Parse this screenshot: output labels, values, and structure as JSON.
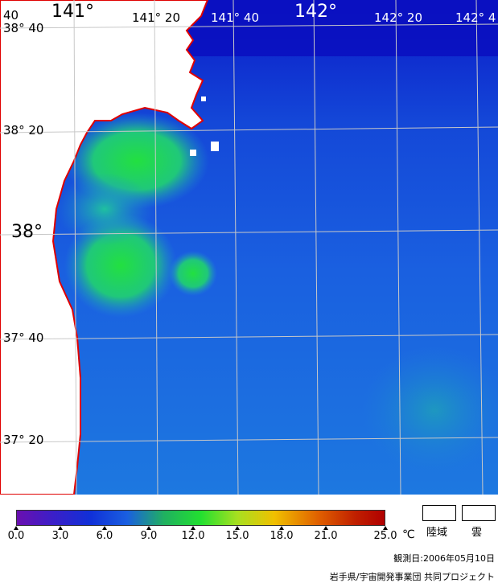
{
  "map": {
    "lat_labels": [
      "38° 40",
      "38° 20",
      "38°",
      "37° 40",
      "37° 20"
    ],
    "lon_labels": [
      "141°",
      "141° 20",
      "141° 40",
      "142°",
      "142° 20",
      "142° 4"
    ],
    "edge_label": "40"
  },
  "colorbar": {
    "ticks": [
      "0.0",
      "3.0",
      "6.0",
      "9.0",
      "12.0",
      "15.0",
      "18.0",
      "21.0",
      "25.0"
    ],
    "unit": "℃"
  },
  "legend": {
    "land": "陸域",
    "cloud": "雲"
  },
  "footer": {
    "date": "観測日:2006年05月10日",
    "credit": "岩手県/宇宙開発事業団 共同プロジェクト"
  },
  "colors": {
    "coast": "#e00000",
    "sea_deep": "#0a10c0",
    "sea_mid": "#1a6ae0",
    "sea_warm": "#22d84a",
    "land": "#ffffff"
  }
}
